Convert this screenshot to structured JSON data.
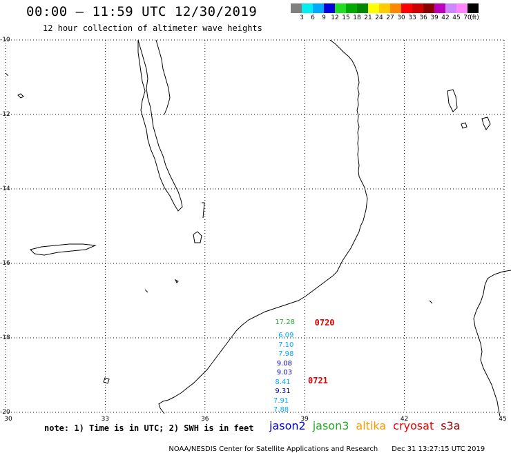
{
  "header": {
    "title": "00:00 – 11:59 UTC 12/30/2019",
    "subtitle": "12 hour collection of altimeter wave heights"
  },
  "legend": {
    "colors": [
      "#808080",
      "#00eeee",
      "#00aaff",
      "#0000dd",
      "#22dd22",
      "#00aa00",
      "#008800",
      "#ffff00",
      "#ffcc00",
      "#ff8800",
      "#ff0000",
      "#cc0000",
      "#880000",
      "#bb00bb",
      "#cc88ff",
      "#ff88ff",
      "#000000"
    ],
    "labels": [
      "3",
      "6",
      "9",
      "12",
      "15",
      "18",
      "21",
      "24",
      "27",
      "30",
      "33",
      "36",
      "39",
      "42",
      "45",
      "70",
      "(ft)"
    ]
  },
  "map": {
    "lat_labels": [
      "-10",
      "-12",
      "-14",
      "-16",
      "-18",
      "-20"
    ],
    "lon_labels": [
      "30",
      "33",
      "36",
      "39",
      "42",
      "45"
    ],
    "lat_range": [
      -20,
      -10
    ],
    "lon_range": [
      30,
      45
    ],
    "gridlines": "dotted"
  },
  "observations": [
    {
      "value": "17.28",
      "lon": 38.4,
      "lat": -17.6,
      "color": "#22aa22"
    },
    {
      "value": "6.09",
      "lon": 38.5,
      "lat": -17.95,
      "color": "#00aaff"
    },
    {
      "value": "7.10",
      "lon": 38.5,
      "lat": -18.2,
      "color": "#00aaff"
    },
    {
      "value": "7.98",
      "lon": 38.5,
      "lat": -18.45,
      "color": "#00aaff"
    },
    {
      "value": "9.08",
      "lon": 38.45,
      "lat": -18.7,
      "color": "#0000cc"
    },
    {
      "value": "9.03",
      "lon": 38.45,
      "lat": -18.95,
      "color": "#0000cc"
    },
    {
      "value": "8.41",
      "lon": 38.4,
      "lat": -19.2,
      "color": "#00aaff"
    },
    {
      "value": "9.31",
      "lon": 38.4,
      "lat": -19.45,
      "color": "#0000cc"
    },
    {
      "value": "7.91",
      "lon": 38.35,
      "lat": -19.7,
      "color": "#00aaff"
    },
    {
      "value": "7.88",
      "lon": 38.35,
      "lat": -19.95,
      "color": "#00aaff"
    }
  ],
  "passes": [
    {
      "label": "0720",
      "lon": 39.3,
      "lat": -17.6
    },
    {
      "label": "0721",
      "lon": 39.1,
      "lat": -19.15
    }
  ],
  "note": "note: 1) Time is in UTC; 2) SWH is in feet",
  "satellites": [
    {
      "name": "jason2",
      "color": "#0000dd"
    },
    {
      "name": "jason3",
      "color": "#22aa22"
    },
    {
      "name": "altika",
      "color": "#ff9900"
    },
    {
      "name": "cryosat",
      "color": "#ee0000"
    },
    {
      "name": "s3a",
      "color": "#990000"
    }
  ],
  "footer": {
    "credit": "NOAA/NESDIS Center for Satellite Applications and Research",
    "timestamp": "Dec 31 13:27:15 UTC 2019"
  }
}
